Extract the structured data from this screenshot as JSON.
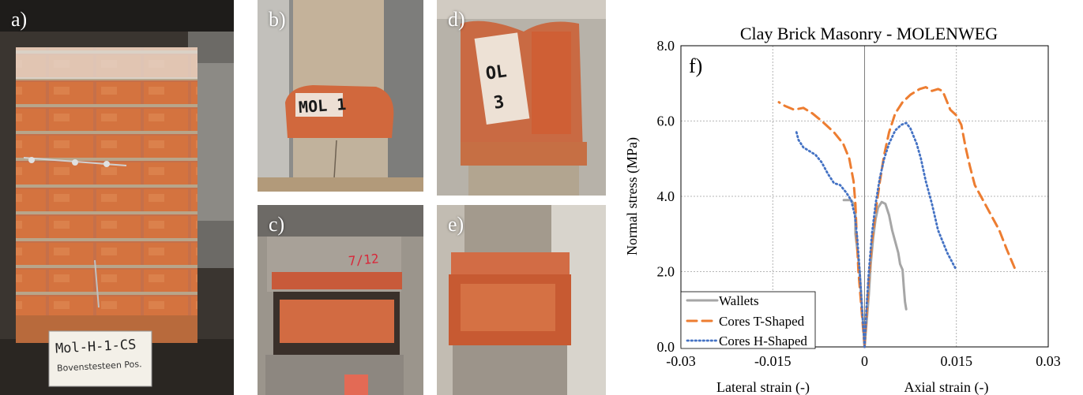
{
  "panels": {
    "a": {
      "label": "a)",
      "sign_line1": "Mol-H-1-CS",
      "sign_line2": "Bovenstesteen Pos."
    },
    "b": {
      "label": "b)",
      "marking": "MOL 1"
    },
    "c": {
      "label": "c)",
      "marking": "7/12"
    },
    "d": {
      "label": "d)",
      "marking_top": "OL",
      "marking_bottom": "3"
    },
    "e": {
      "label": "e)"
    }
  },
  "colors": {
    "wallets": "#a6a6a6",
    "cores_t": "#ed7d31",
    "cores_h": "#4472c4",
    "brick": "#c8623a",
    "mortar": "#c9b9a0",
    "concrete": "#a79c8c"
  },
  "chart_data": {
    "type": "line",
    "title": "Clay Brick Masonry - MOLENWEG",
    "panel_label": "f)",
    "ylabel": "Normal stress (MPa)",
    "xlabel_left": "Lateral strain (-)",
    "xlabel_right": "Axial strain (-)",
    "xlim": [
      -0.03,
      0.03
    ],
    "ylim": [
      0,
      8
    ],
    "xticks": [
      -0.03,
      -0.015,
      0,
      0.015,
      0.03
    ],
    "xtick_labels": [
      "-0.03",
      "-0.015",
      "0",
      "0.015",
      "0.03"
    ],
    "yticks": [
      0,
      2,
      4,
      6,
      8
    ],
    "ytick_labels": [
      "0.0",
      "2.0",
      "4.0",
      "6.0",
      "8.0"
    ],
    "grid": true,
    "legend_placement": "bottom-left",
    "series": [
      {
        "name": "Wallets",
        "style": "solid",
        "color": "#a6a6a6",
        "points": [
          [
            0,
            0
          ],
          [
            -0.0002,
            0.5
          ],
          [
            -0.0005,
            1.2
          ],
          [
            -0.0008,
            2.0
          ],
          [
            -0.0012,
            2.6
          ],
          [
            -0.0015,
            3.0
          ],
          [
            -0.0015,
            3.4
          ],
          [
            -0.0015,
            3.7
          ],
          [
            -0.0018,
            3.8
          ],
          [
            -0.0022,
            3.9
          ],
          [
            -0.003,
            3.9
          ],
          [
            -0.0034,
            3.9
          ],
          null,
          [
            0,
            0
          ],
          [
            0.0003,
            0.6
          ],
          [
            0.0007,
            1.4
          ],
          [
            0.001,
            2.2
          ],
          [
            0.0014,
            2.9
          ],
          [
            0.0018,
            3.4
          ],
          [
            0.0022,
            3.7
          ],
          [
            0.0028,
            3.85
          ],
          [
            0.0034,
            3.8
          ],
          [
            0.004,
            3.5
          ],
          [
            0.0045,
            3.1
          ],
          [
            0.005,
            2.8
          ],
          [
            0.0055,
            2.5
          ],
          [
            0.0058,
            2.2
          ],
          [
            0.0062,
            2.05
          ],
          [
            0.0064,
            1.6
          ],
          [
            0.0066,
            1.2
          ],
          [
            0.0068,
            1.0
          ]
        ]
      },
      {
        "name": "Cores T-Shaped",
        "style": "dashed",
        "color": "#ed7d31",
        "points": [
          [
            0,
            0
          ],
          [
            -0.0005,
            1.0
          ],
          [
            -0.001,
            2.0
          ],
          [
            -0.0013,
            3.0
          ],
          [
            -0.0015,
            3.8
          ],
          [
            -0.0018,
            4.4
          ],
          [
            -0.0025,
            5.0
          ],
          [
            -0.0035,
            5.4
          ],
          [
            -0.005,
            5.7
          ],
          [
            -0.007,
            6.0
          ],
          [
            -0.0085,
            6.2
          ],
          [
            -0.01,
            6.35
          ],
          [
            -0.0115,
            6.3
          ],
          [
            -0.013,
            6.4
          ],
          [
            -0.014,
            6.5
          ],
          null,
          [
            0,
            0
          ],
          [
            0.0003,
            0.8
          ],
          [
            0.0007,
            1.8
          ],
          [
            0.0012,
            2.8
          ],
          [
            0.0018,
            3.6
          ],
          [
            0.0025,
            4.4
          ],
          [
            0.0032,
            5.1
          ],
          [
            0.004,
            5.7
          ],
          [
            0.005,
            6.2
          ],
          [
            0.0062,
            6.5
          ],
          [
            0.0075,
            6.7
          ],
          [
            0.009,
            6.85
          ],
          [
            0.01,
            6.9
          ],
          [
            0.011,
            6.8
          ],
          [
            0.012,
            6.85
          ],
          [
            0.0127,
            6.8
          ],
          [
            0.013,
            6.7
          ],
          [
            0.0135,
            6.5
          ],
          [
            0.014,
            6.3
          ],
          [
            0.015,
            6.15
          ],
          [
            0.0158,
            5.9
          ],
          [
            0.0165,
            5.3
          ],
          [
            0.0172,
            4.8
          ],
          [
            0.018,
            4.3
          ],
          [
            0.019,
            4.0
          ],
          [
            0.02,
            3.7
          ],
          [
            0.021,
            3.4
          ],
          [
            0.022,
            3.1
          ],
          [
            0.0232,
            2.6
          ],
          [
            0.0245,
            2.1
          ]
        ]
      },
      {
        "name": "Cores H-Shaped",
        "style": "dotted",
        "color": "#4472c4",
        "points": [
          [
            0,
            0
          ],
          [
            -0.0004,
            1.0
          ],
          [
            -0.0008,
            2.0
          ],
          [
            -0.0012,
            2.9
          ],
          [
            -0.0016,
            3.5
          ],
          [
            -0.0022,
            3.9
          ],
          [
            -0.003,
            4.1
          ],
          [
            -0.004,
            4.3
          ],
          [
            -0.005,
            4.35
          ],
          [
            -0.006,
            4.6
          ],
          [
            -0.007,
            4.9
          ],
          [
            -0.008,
            5.1
          ],
          [
            -0.009,
            5.2
          ],
          [
            -0.01,
            5.3
          ],
          [
            -0.0108,
            5.5
          ],
          [
            -0.0112,
            5.75
          ],
          null,
          [
            0,
            0
          ],
          [
            0.0003,
            1.0
          ],
          [
            0.0007,
            2.0
          ],
          [
            0.0012,
            3.0
          ],
          [
            0.0018,
            3.8
          ],
          [
            0.0025,
            4.5
          ],
          [
            0.0032,
            5.0
          ],
          [
            0.004,
            5.4
          ],
          [
            0.005,
            5.75
          ],
          [
            0.006,
            5.9
          ],
          [
            0.0068,
            5.95
          ],
          [
            0.0075,
            5.8
          ],
          [
            0.0085,
            5.4
          ],
          [
            0.0092,
            5.0
          ],
          [
            0.01,
            4.4
          ],
          [
            0.011,
            3.8
          ],
          [
            0.012,
            3.1
          ],
          [
            0.0135,
            2.5
          ],
          [
            0.0148,
            2.1
          ]
        ]
      }
    ]
  }
}
